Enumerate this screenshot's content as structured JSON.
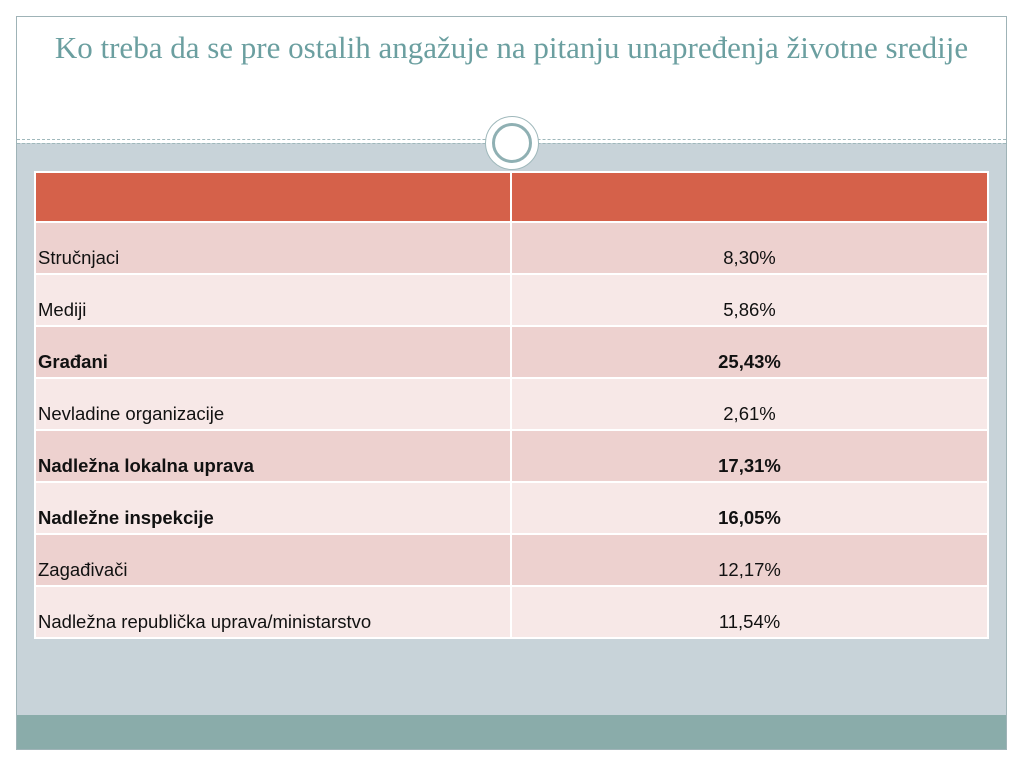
{
  "slide": {
    "title": "Ko treba da se pre ostalih angažuje na pitanju unapređenja životne sredije"
  },
  "colors": {
    "header_row": "#d5614a",
    "row_odd": "#edd1cf",
    "row_even": "#f7e8e7",
    "title_text": "#6b9fa0",
    "background": "#c8d3d9",
    "footer_bar": "#8aacaa"
  },
  "table": {
    "header": [
      "",
      ""
    ],
    "rows": [
      {
        "label": "Stručnjaci",
        "value": "8,30%",
        "bold": false
      },
      {
        "label": "Mediji",
        "value": "5,86%",
        "bold": false
      },
      {
        "label": "Građani",
        "value": "25,43%",
        "bold": true
      },
      {
        "label": "Nevladine organizacije",
        "value": "2,61%",
        "bold": false
      },
      {
        "label": "Nadležna lokalna uprava",
        "value": "17,31%",
        "bold": true
      },
      {
        "label": "Nadležne inspekcije",
        "value": "16,05%",
        "bold": true
      },
      {
        "label": "Zagađivači",
        "value": "12,17%",
        "bold": false
      },
      {
        "label": "Nadležna republička uprava/ministarstvo",
        "value": "11,54%",
        "bold": false
      }
    ]
  }
}
